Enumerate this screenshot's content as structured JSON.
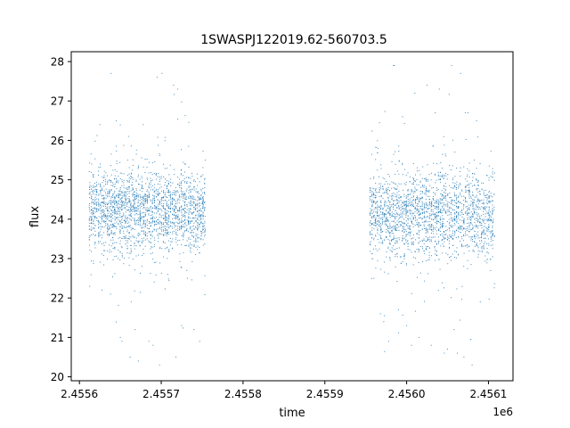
{
  "chart_data": {
    "type": "scatter",
    "title": "1SWASPJ122019.62-560703.5",
    "xlabel": "time",
    "ylabel": "flux",
    "x_offset_label": "1e6",
    "x_offset": 1000000,
    "xlim": [
      2455590,
      2456130
    ],
    "ylim": [
      19.9,
      28.25
    ],
    "xticks": [
      2455600,
      2455700,
      2455800,
      2455900,
      2456000,
      2456100
    ],
    "xtick_labels": [
      "2.4556",
      "2.4557",
      "2.4558",
      "2.4559",
      "2.4560",
      "2.4561"
    ],
    "yticks": [
      20,
      21,
      22,
      23,
      24,
      25,
      26,
      27,
      28
    ],
    "ytick_labels": [
      "20",
      "21",
      "22",
      "23",
      "24",
      "25",
      "26",
      "27",
      "28"
    ],
    "grid": false,
    "marker_color": "#1f77b4",
    "series": [
      {
        "x_range": [
          2455612,
          2455755
        ],
        "y_center": 24.2,
        "y_typical_spread": [
          23.4,
          25.0
        ],
        "y_extremes": [
          20.3,
          27.7
        ],
        "points": [
          [
            2455612,
            24.3
          ],
          [
            2455615,
            25.4
          ],
          [
            2455620,
            23.6
          ],
          [
            2455625,
            26.4
          ],
          [
            2455631,
            23.2
          ],
          [
            2455638,
            22.1
          ],
          [
            2455645,
            26.5
          ],
          [
            2455650,
            21.0
          ],
          [
            2455652,
            20.9
          ],
          [
            2455660,
            26.1
          ],
          [
            2455662,
            20.5
          ],
          [
            2455668,
            21.2
          ],
          [
            2455672,
            20.4
          ],
          [
            2455678,
            26.4
          ],
          [
            2455685,
            20.9
          ],
          [
            2455690,
            20.8
          ],
          [
            2455695,
            27.6
          ],
          [
            2455698,
            20.3
          ],
          [
            2455701,
            27.7
          ],
          [
            2455708,
            22.6
          ],
          [
            2455715,
            27.4
          ],
          [
            2455718,
            20.5
          ],
          [
            2455720,
            27.3
          ],
          [
            2455725,
            21.3
          ],
          [
            2455732,
            22.5
          ],
          [
            2455740,
            21.2
          ],
          [
            2455747,
            20.9
          ],
          [
            2455754,
            25.5
          ]
        ]
      },
      {
        "x_range": [
          2455955,
          2456108
        ],
        "y_center": 24.1,
        "y_typical_spread": [
          23.3,
          25.0
        ],
        "y_extremes": [
          20.3,
          27.9
        ],
        "points": [
          [
            2455956,
            24.2
          ],
          [
            2455960,
            22.5
          ],
          [
            2455965,
            25.8
          ],
          [
            2455968,
            21.6
          ],
          [
            2455972,
            21.4
          ],
          [
            2455978,
            20.9
          ],
          [
            2455985,
            27.9
          ],
          [
            2455990,
            21.7
          ],
          [
            2455995,
            26.6
          ],
          [
            2456000,
            21.3
          ],
          [
            2456006,
            20.8
          ],
          [
            2456010,
            27.2
          ],
          [
            2456015,
            21.0
          ],
          [
            2456025,
            27.4
          ],
          [
            2456030,
            20.8
          ],
          [
            2456035,
            26.7
          ],
          [
            2456040,
            27.3
          ],
          [
            2456046,
            20.6
          ],
          [
            2456050,
            20.7
          ],
          [
            2456055,
            27.9
          ],
          [
            2456058,
            21.2
          ],
          [
            2456062,
            20.6
          ],
          [
            2456066,
            27.7
          ],
          [
            2456070,
            20.5
          ],
          [
            2456075,
            26.7
          ],
          [
            2456080,
            20.3
          ],
          [
            2456090,
            21.9
          ],
          [
            2456100,
            23.5
          ],
          [
            2456106,
            24.0
          ]
        ]
      }
    ]
  }
}
